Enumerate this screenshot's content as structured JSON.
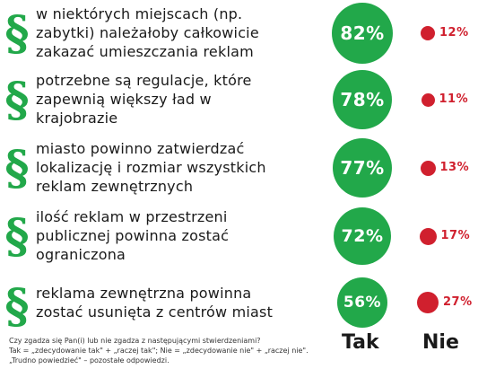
{
  "chart_data": {
    "type": "table",
    "columns": [
      "Tak",
      "Nie"
    ],
    "rows": [
      {
        "statement": "w niektórych miejscach (np. zabytki) należałoby całkowicie zakazać umieszczania reklam",
        "lines": [
          "w niektórych miejscach (np.",
          "zabytki) należałoby całkowicie",
          "zakazać umieszczania reklam"
        ],
        "yes": 82,
        "yes_label": "82%",
        "no": 12,
        "no_label": "12%"
      },
      {
        "statement": "potrzebne są regulacje, które zapewnią większy ład w krajobrazie",
        "lines": [
          "potrzebne są regulacje, które",
          "zapewnią większy ład w",
          "krajobrazie"
        ],
        "yes": 78,
        "yes_label": "78%",
        "no": 11,
        "no_label": "11%"
      },
      {
        "statement": "miasto powinno zatwierdzać lokalizację i rozmiar wszystkich reklam zewnętrznych",
        "lines": [
          "miasto powinno zatwierdzać",
          "lokalizację i rozmiar wszystkich",
          "reklam zewnętrznych"
        ],
        "yes": 77,
        "yes_label": "77%",
        "no": 13,
        "no_label": "13%"
      },
      {
        "statement": "ilość reklam w przestrzeni publicznej powinna zostać ograniczona",
        "lines": [
          "ilość reklam w przestrzeni",
          "publicznej powinna zostać",
          "ograniczona"
        ],
        "yes": 72,
        "yes_label": "72%",
        "no": 17,
        "no_label": "17%"
      },
      {
        "statement": "reklama zewnętrzna powinna zostać usunięta z centrów miast",
        "lines": [
          "reklama zewnętrzna powinna",
          "zostać usunięta z centrów miast"
        ],
        "yes": 56,
        "yes_label": "56%",
        "no": 27,
        "no_label": "27%"
      }
    ]
  },
  "paragraph_symbol": "§",
  "headers": {
    "yes": "Tak",
    "no": "Nie"
  },
  "footnote": [
    "Czy zgadza się Pan(i) lub nie zgadza z następującymi stwierdzeniami?",
    "Tak = „zdecydowanie tak\" + „raczej tak\"; Nie = „zdecydowanie nie\" + „raczej nie\".",
    "„Trudno powiedzieć\" – pozostałe odpowiedzi."
  ],
  "colors": {
    "green": "#22a84a",
    "red": "#d0202e",
    "text": "#1a1a1a"
  }
}
